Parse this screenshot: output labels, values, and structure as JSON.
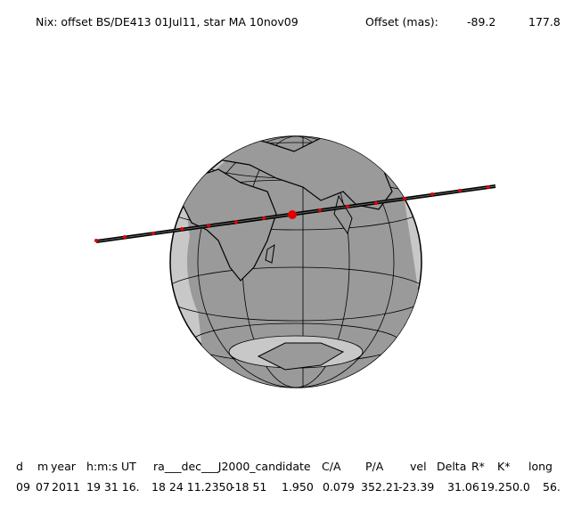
{
  "header": {
    "title": "Nix: offset BS/DE413 01Jul11, star MA 10nov09",
    "offset_label": "Offset (mas):",
    "offset_values": [
      "-89.2",
      "177.8"
    ]
  },
  "table": {
    "columns": [
      "d",
      "m",
      "year",
      "h:m:s UT",
      "ra___dec___J2000_candidate",
      "C/A",
      "P/A",
      "vel",
      "Delta",
      "R*",
      "K*",
      "long"
    ],
    "row": [
      "09",
      "07",
      "2011",
      "19 31 16.",
      "18 24 11.2350",
      "-18 51",
      "1.950",
      "0.079",
      "352.21",
      "-23.39",
      "31.06",
      "19.2",
      "50.0",
      "56."
    ]
  }
}
